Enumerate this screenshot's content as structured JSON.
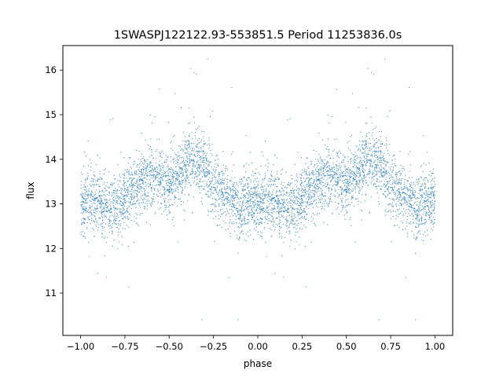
{
  "chart_data": {
    "type": "scatter",
    "title": "1SWASPJ122122.93-553851.5 Period 11253836.0s",
    "xlabel": "phase",
    "ylabel": "flux",
    "xlim": [
      -1.1,
      1.1
    ],
    "ylim": [
      10.05,
      16.55
    ],
    "xticks": [
      -1.0,
      -0.75,
      -0.5,
      -0.25,
      0.0,
      0.25,
      0.5,
      0.75,
      1.0
    ],
    "xtick_labels": [
      "−1.00",
      "−0.75",
      "−0.50",
      "−0.25",
      "0.00",
      "0.25",
      "0.50",
      "0.75",
      "1.00"
    ],
    "yticks": [
      11,
      12,
      13,
      14,
      15,
      16
    ],
    "ytick_labels": [
      "11",
      "12",
      "13",
      "14",
      "15",
      "16"
    ],
    "grid": false,
    "legend": "none",
    "point_color": "#1f77b4",
    "marker_size": 0.6,
    "phase_range": [
      -1.0,
      1.0
    ],
    "light_curve_profile": {
      "phase": [
        0.0,
        0.05,
        0.1,
        0.15,
        0.2,
        0.25,
        0.3,
        0.35,
        0.4,
        0.45,
        0.5,
        0.55,
        0.6,
        0.65,
        0.7,
        0.75,
        0.8,
        0.85,
        0.9,
        0.95,
        1.0
      ],
      "median_flux": [
        13.0,
        13.05,
        13.0,
        12.9,
        12.95,
        13.1,
        13.3,
        13.5,
        13.65,
        13.55,
        13.5,
        13.6,
        13.9,
        14.0,
        13.75,
        13.55,
        13.3,
        13.05,
        12.95,
        13.0,
        13.0
      ],
      "scatter": 0.35,
      "min_flux": 10.4,
      "max_flux": 16.25
    }
  }
}
